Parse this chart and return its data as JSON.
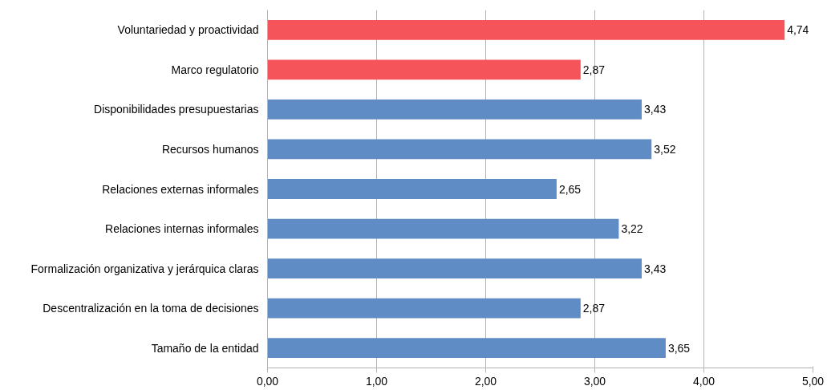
{
  "chart_data": {
    "type": "bar",
    "orientation": "horizontal",
    "categories": [
      "Voluntariedad y proactividad",
      "Marco regulatorio",
      "Disponibilidades presupuestarias",
      "Recursos humanos",
      "Relaciones externas informales",
      "Relaciones internas informales",
      "Formalización organizativa y jerárquica claras",
      "Descentralización en la toma de decisiones",
      "Tamaño de la entidad"
    ],
    "values": [
      4.74,
      2.87,
      3.43,
      3.52,
      2.65,
      3.22,
      3.43,
      2.87,
      3.65
    ],
    "value_labels": [
      "4,74",
      "2,87",
      "3,43",
      "3,52",
      "2,65",
      "3,22",
      "3,43",
      "2,87",
      "3,65"
    ],
    "colors": [
      "#f4545a",
      "#f4545a",
      "#5f8cc4",
      "#5f8cc4",
      "#5f8cc4",
      "#5f8cc4",
      "#5f8cc4",
      "#5f8cc4",
      "#5f8cc4"
    ],
    "xlim": [
      0,
      5
    ],
    "xticks": [
      {
        "value": 0,
        "label": "0,00"
      },
      {
        "value": 1,
        "label": "1,00"
      },
      {
        "value": 2,
        "label": "2,00"
      },
      {
        "value": 3,
        "label": "3,00"
      },
      {
        "value": 4,
        "label": "4,00"
      },
      {
        "value": 5,
        "label": "5,00"
      }
    ],
    "grid": "x"
  }
}
